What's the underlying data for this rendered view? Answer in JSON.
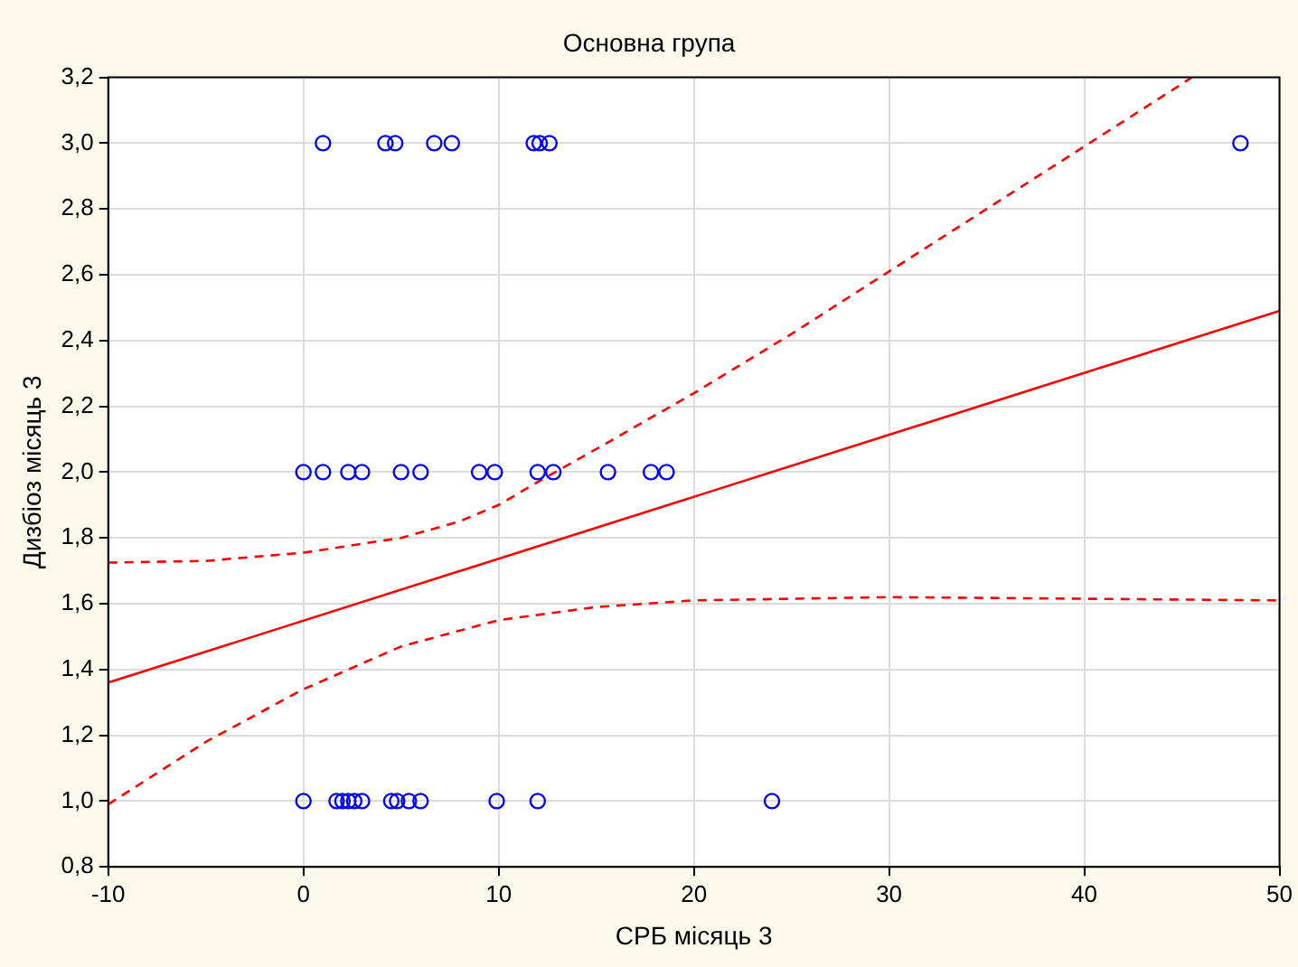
{
  "chart_data": {
    "type": "scatter",
    "title": "Основна група",
    "xlabel": "СРБ місяць 3",
    "ylabel": "Дизбіоз місяць 3",
    "xlim": [
      -10,
      50
    ],
    "xticks": [
      -10,
      0,
      10,
      20,
      30,
      40,
      50
    ],
    "ylim": [
      0.8,
      3.2
    ],
    "yticks": [
      {
        "value": 0.8,
        "label": "0,8"
      },
      {
        "value": 1.0,
        "label": "1,0"
      },
      {
        "value": 1.2,
        "label": "1,2"
      },
      {
        "value": 1.4,
        "label": "1,4"
      },
      {
        "value": 1.6,
        "label": "1,6"
      },
      {
        "value": 1.8,
        "label": "1,8"
      },
      {
        "value": 2.0,
        "label": "2,0"
      },
      {
        "value": 2.2,
        "label": "2,2"
      },
      {
        "value": 2.4,
        "label": "2,4"
      },
      {
        "value": 2.6,
        "label": "2,6"
      },
      {
        "value": 2.8,
        "label": "2,8"
      },
      {
        "value": 3.0,
        "label": "3,0"
      },
      {
        "value": 3.2,
        "label": "3,2"
      }
    ],
    "grid": true,
    "legend": false,
    "series": [
      {
        "marker": "circle",
        "color": "#0000ff",
        "x": [
          1,
          4.2,
          4.7,
          6.7,
          7.6,
          11.8,
          12.1,
          12.6,
          48,
          0,
          1,
          2.3,
          3,
          5,
          6,
          9,
          9.8,
          12,
          12.8,
          15.6,
          17.8,
          18.6,
          0,
          1.7,
          2,
          2.3,
          2.6,
          3,
          4.5,
          4.8,
          5.4,
          6,
          9.9,
          12,
          24
        ],
        "values": [
          3,
          3,
          3,
          3,
          3,
          3,
          3,
          3,
          3,
          2,
          2,
          2,
          2,
          2,
          2,
          2,
          2,
          2,
          2,
          2,
          2,
          2,
          1,
          1,
          1,
          1,
          1,
          1,
          1,
          1,
          1,
          1,
          1,
          1,
          1
        ]
      },
      {
        "type": "line",
        "color": "#ff0000",
        "line_style": "solid",
        "marker": "none",
        "x": [
          -10,
          50
        ],
        "values": [
          1.36,
          2.49
        ]
      },
      {
        "type": "line",
        "color": "#ff0000",
        "line_style": "dashed",
        "marker": "none",
        "x": [
          -10,
          -5,
          0,
          5,
          8,
          10,
          12,
          15,
          20,
          25,
          30,
          35,
          40,
          45,
          45.5
        ],
        "values": [
          1.725,
          1.73,
          1.755,
          1.8,
          1.85,
          1.9,
          1.97,
          2.07,
          2.24,
          2.42,
          2.61,
          2.8,
          2.99,
          3.18,
          3.2
        ]
      },
      {
        "type": "line",
        "color": "#ff0000",
        "line_style": "dashed",
        "marker": "none",
        "x": [
          -10,
          -5,
          0,
          5,
          10,
          15,
          20,
          25,
          30,
          40,
          50
        ],
        "values": [
          0.99,
          1.18,
          1.34,
          1.47,
          1.55,
          1.59,
          1.61,
          1.615,
          1.62,
          1.615,
          1.61
        ]
      }
    ]
  }
}
